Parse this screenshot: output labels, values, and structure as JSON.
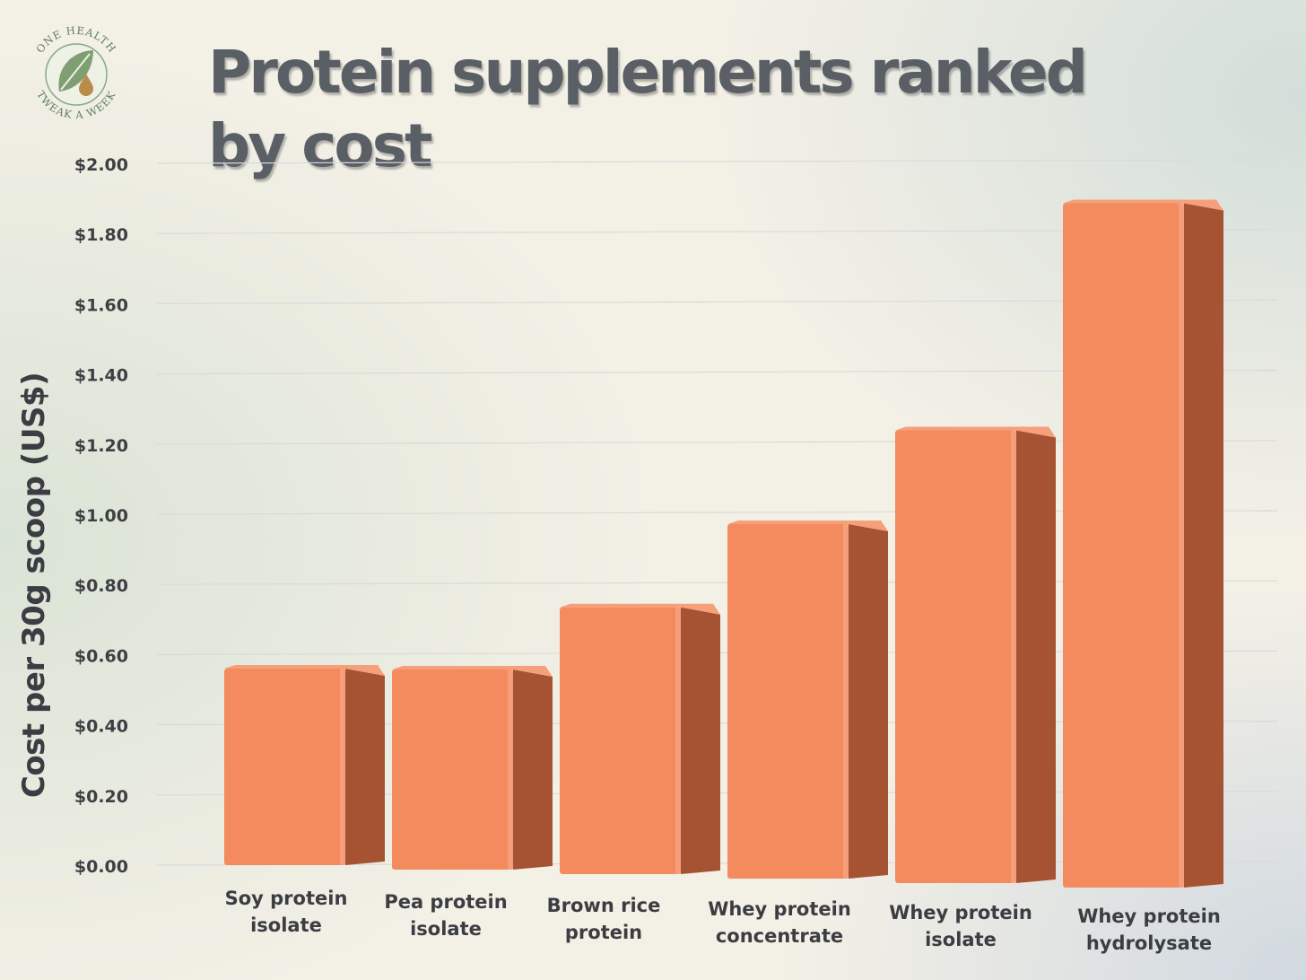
{
  "logo": {
    "text_top": "ONE HEALTH",
    "text_bottom": "TWEAK A WEEK",
    "icon": "leaf-droplet-icon"
  },
  "chart_data": {
    "type": "bar",
    "title": "Protein supplements ranked by cost",
    "title_lines": [
      "Protein supplements ranked",
      "by cost"
    ],
    "ylabel": "Cost per 30g scoop (US$)",
    "xlabel": "",
    "ylim": [
      0,
      2.0
    ],
    "yticks": [
      0,
      0.2,
      0.4,
      0.6,
      0.8,
      1.0,
      1.2,
      1.4,
      1.6,
      1.8,
      2.0
    ],
    "ytick_labels": [
      "$0.00",
      "$0.20",
      "$0.40",
      "$0.60",
      "$0.80",
      "$1.00",
      "$1.20",
      "$1.40",
      "$1.60",
      "$1.80",
      "$2.00"
    ],
    "grid": true,
    "categories": [
      "Soy protein isolate",
      "Pea protein isolate",
      "Brown rice protein",
      "Whey protein concentrate",
      "Whey protein isolate",
      "Whey protein hydrolysate"
    ],
    "category_lines": [
      [
        "Soy protein",
        "isolate"
      ],
      [
        "Pea protein",
        "isolate"
      ],
      [
        "Brown rice",
        "protein"
      ],
      [
        "Whey protein",
        "concentrate"
      ],
      [
        "Whey protein",
        "isolate"
      ],
      [
        "Whey protein",
        "hydrolysate"
      ]
    ],
    "values": [
      0.55,
      0.56,
      0.75,
      1.0,
      1.28,
      1.94
    ],
    "colors": {
      "bar_front": "#f38b5e",
      "bar_side": "#a65334",
      "bar_top": "#f5a07a"
    }
  }
}
